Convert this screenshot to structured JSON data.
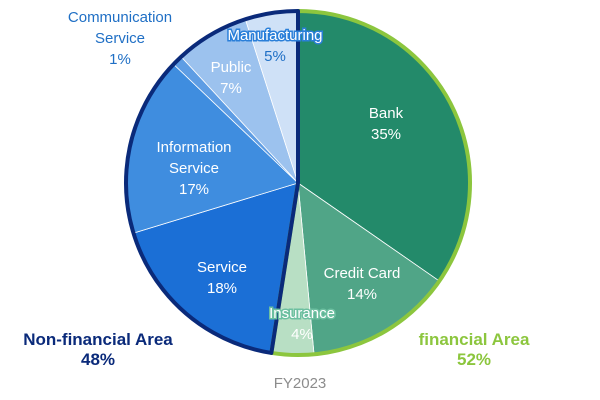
{
  "chart_data": {
    "type": "pie",
    "subtitle": "FY2023",
    "slices": [
      {
        "name": "Bank",
        "value": 35,
        "label": "35%",
        "color": "#238a6a"
      },
      {
        "name": "Credit Card",
        "value": 14,
        "label": "14%",
        "color": "#50a587"
      },
      {
        "name": "Insurance",
        "value": 4,
        "label": "4%",
        "color": "#b8dfc4"
      },
      {
        "name": "Service",
        "value": 18,
        "label": "18%",
        "color": "#1b6fd6"
      },
      {
        "name": "Information Service",
        "value": 17,
        "label": "17%",
        "color": "#3f8ddf"
      },
      {
        "name": "Communication Service",
        "value": 1,
        "label": "1%",
        "color": "#5e9de4"
      },
      {
        "name": "Public",
        "value": 7,
        "label": "7%",
        "color": "#9cc2ee"
      },
      {
        "name": "Manufacturing",
        "value": 5,
        "label": "5%",
        "color": "#cfe1f7"
      }
    ],
    "groups": [
      {
        "name": "financial Area",
        "value": 52,
        "label": "52%",
        "color": "#8cc63e",
        "members": [
          "Bank",
          "Credit Card",
          "Insurance"
        ]
      },
      {
        "name": "Non-financial Area",
        "value": 48,
        "label": "48%",
        "color": "#0a2a7a",
        "members": [
          "Service",
          "Information Service",
          "Communication Service",
          "Public",
          "Manufacturing"
        ]
      }
    ]
  }
}
